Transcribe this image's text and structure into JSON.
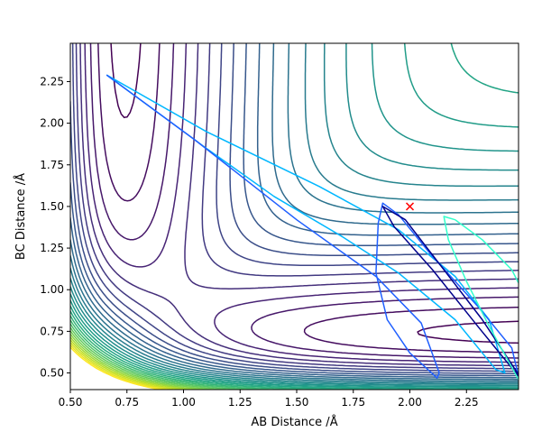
{
  "chart_data": {
    "type": "contour",
    "title": "",
    "xlabel": "AB Distance /Å",
    "ylabel": "BC Distance /Å",
    "xlim": [
      0.5,
      2.48
    ],
    "ylim": [
      0.4,
      2.48
    ],
    "xticks": [
      "0.50",
      "0.75",
      "1.00",
      "1.25",
      "1.50",
      "1.75",
      "2.00",
      "2.25"
    ],
    "yticks": [
      "0.50",
      "0.75",
      "1.00",
      "1.25",
      "1.50",
      "1.75",
      "2.00",
      "2.25"
    ],
    "colormap": "viridis",
    "grid": false,
    "legend": "none",
    "contours": {
      "count": 30,
      "potential": "LEPS-like H+H2 surface (symmetric valley, transition region near AB≈BC≈0.93 Å, well floor at ≈0.74 Å)"
    },
    "trajectories": [
      {
        "color": "#00b7ff",
        "points": [
          [
            0.66,
            2.29
          ],
          [
            1.1,
            1.95
          ],
          [
            1.6,
            1.62
          ],
          [
            1.95,
            1.36
          ],
          [
            2.2,
            1.08
          ],
          [
            2.35,
            0.82
          ],
          [
            2.42,
            0.5
          ],
          [
            2.38,
            0.52
          ],
          [
            2.2,
            0.82
          ],
          [
            1.95,
            1.1
          ],
          [
            1.7,
            1.32
          ],
          [
            1.4,
            1.56
          ],
          [
            1.1,
            1.85
          ],
          [
            0.66,
            2.29
          ]
        ]
      },
      {
        "color": "#1f5fff",
        "points": [
          [
            0.66,
            2.29
          ],
          [
            1.05,
            1.9
          ],
          [
            1.5,
            1.42
          ],
          [
            1.85,
            1.08
          ],
          [
            2.05,
            0.8
          ],
          [
            2.13,
            0.5
          ],
          [
            2.12,
            0.47
          ],
          [
            2.0,
            0.62
          ],
          [
            1.9,
            0.82
          ],
          [
            1.85,
            1.1
          ],
          [
            1.86,
            1.4
          ],
          [
            1.88,
            1.52
          ],
          [
            1.95,
            1.45
          ],
          [
            2.1,
            1.2
          ],
          [
            2.3,
            0.9
          ],
          [
            2.45,
            0.65
          ],
          [
            2.48,
            0.48
          ]
        ]
      },
      {
        "color": "#00008b",
        "points": [
          [
            2.48,
            0.48
          ],
          [
            2.3,
            0.78
          ],
          [
            2.1,
            1.12
          ],
          [
            1.93,
            1.38
          ],
          [
            1.88,
            1.5
          ],
          [
            1.98,
            1.42
          ],
          [
            2.15,
            1.12
          ],
          [
            2.32,
            0.82
          ],
          [
            2.48,
            0.49
          ]
        ]
      },
      {
        "color": "#33ffcc",
        "points": [
          [
            2.48,
            0.46
          ],
          [
            2.35,
            0.78
          ],
          [
            2.25,
            1.05
          ],
          [
            2.17,
            1.3
          ],
          [
            2.15,
            1.44
          ],
          [
            2.2,
            1.42
          ],
          [
            2.32,
            1.3
          ],
          [
            2.45,
            1.12
          ],
          [
            2.48,
            1.04
          ]
        ]
      }
    ],
    "annotations": [
      {
        "marker": "x",
        "color": "#ff0000",
        "x": 2.0,
        "y": 1.5
      }
    ]
  }
}
